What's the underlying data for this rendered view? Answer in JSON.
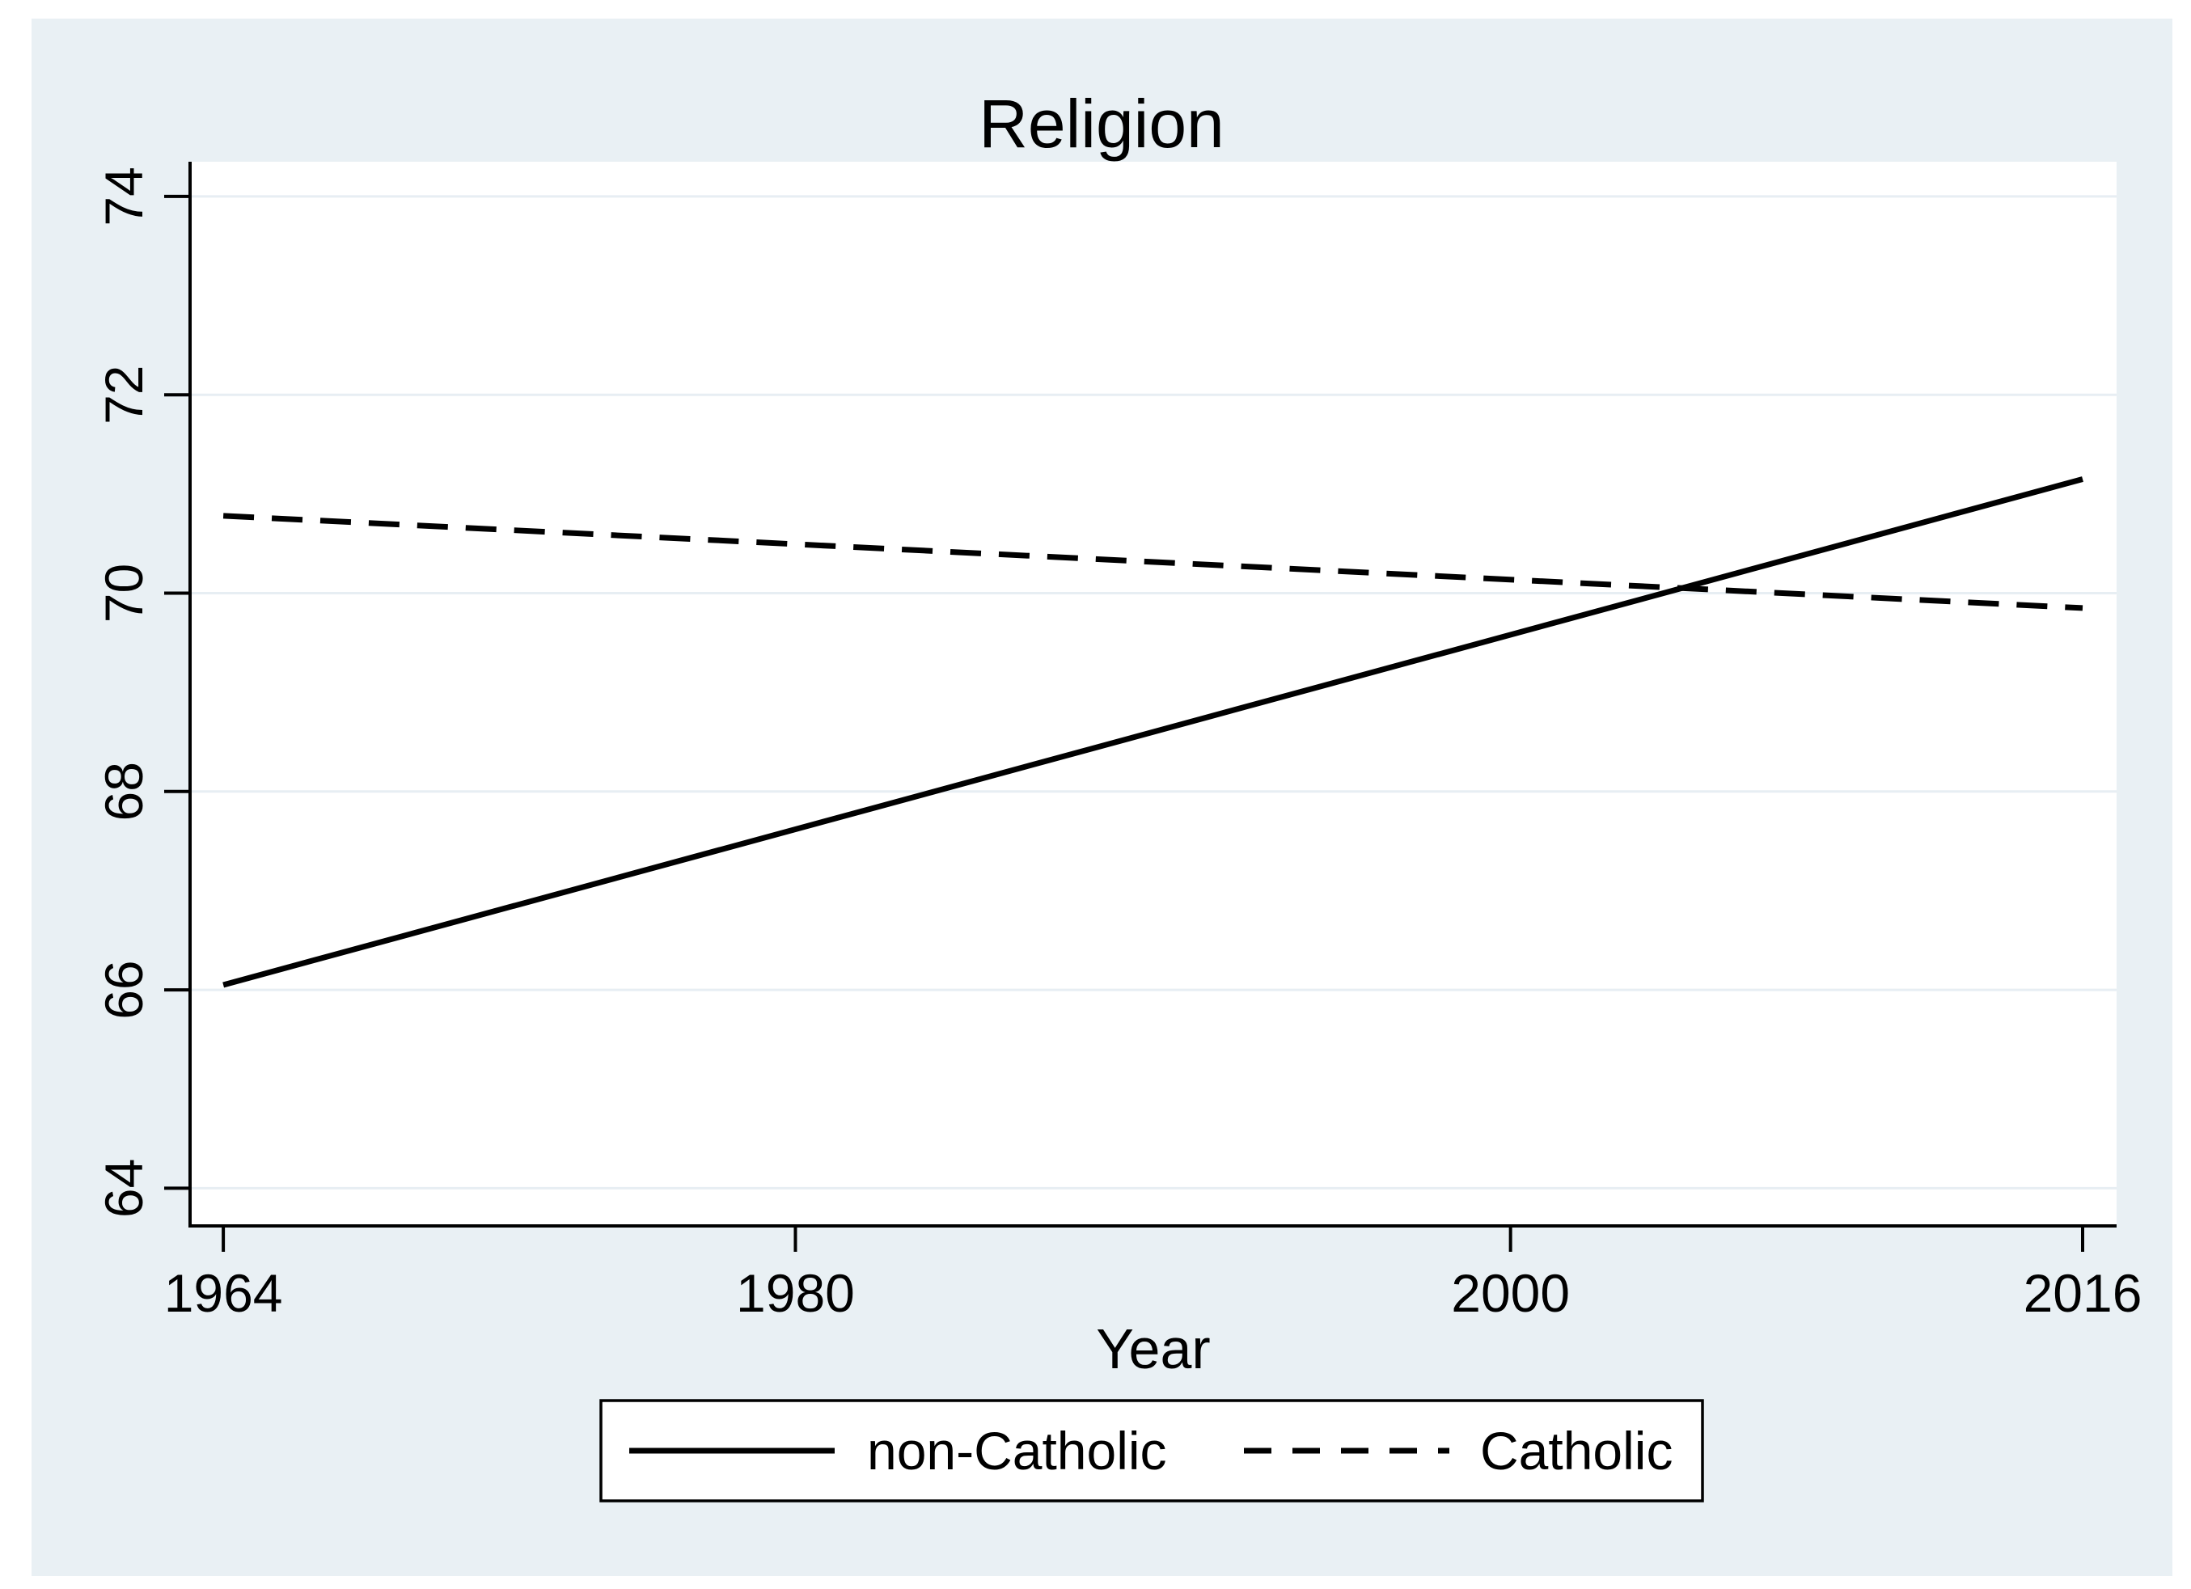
{
  "chart_data": {
    "type": "line",
    "title": "Religion",
    "xlabel": "Year",
    "ylabel": "",
    "x": [
      1964,
      2016
    ],
    "series": [
      {
        "name": "non-Catholic",
        "style": "solid",
        "color": "#000000",
        "values": [
          66.05,
          71.15
        ]
      },
      {
        "name": "Catholic",
        "style": "dashed",
        "color": "#000000",
        "values": [
          70.78,
          69.85
        ]
      }
    ],
    "xticks": [
      1964,
      1980,
      2000,
      2016
    ],
    "yticks": [
      64,
      66,
      68,
      70,
      72,
      74
    ],
    "xlim": [
      1963.07,
      2016.95
    ],
    "ylim": [
      63.62,
      74.35
    ],
    "grid": true,
    "gridlines": "horizontal-only",
    "legend_position": "bottom",
    "crossing_note": "lines cross near year 2005 at about 70.05",
    "colors": {
      "canvas_background": "#e9f0f4",
      "plot_background": "#ffffff",
      "gridline": "#e7eef3",
      "axis": "#000000",
      "title": "#263256",
      "legend_background": "#ffffff",
      "legend_border": "#000000"
    }
  }
}
